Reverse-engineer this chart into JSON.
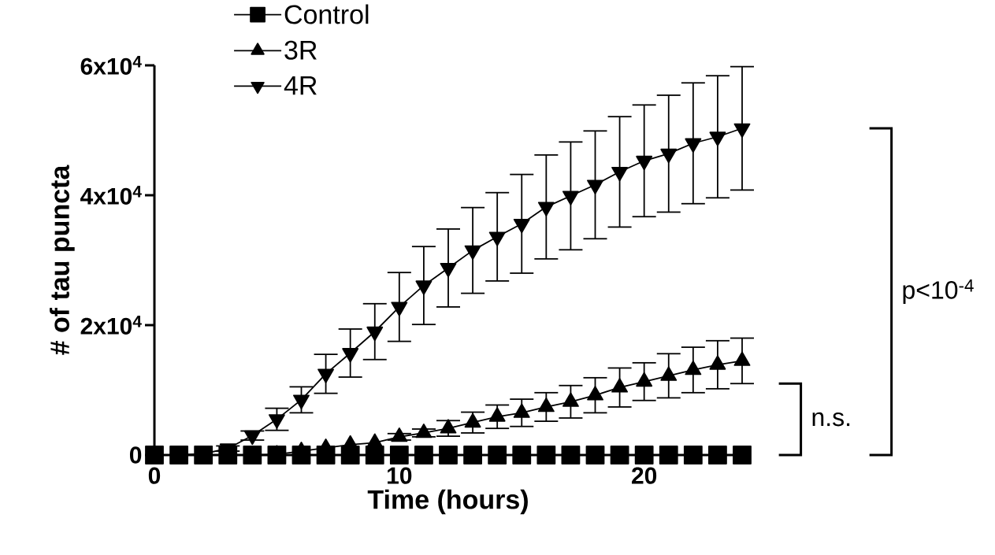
{
  "chart_data": {
    "type": "line",
    "xlabel": "Time (hours)",
    "ylabel": "# of tau puncta",
    "x": [
      0,
      1,
      2,
      3,
      4,
      5,
      6,
      7,
      8,
      9,
      10,
      11,
      12,
      13,
      14,
      15,
      16,
      17,
      18,
      19,
      20,
      21,
      22,
      23,
      24
    ],
    "xlim": [
      0,
      24
    ],
    "xticks": [
      0,
      10,
      20
    ],
    "ylim": [
      0,
      60000
    ],
    "yticks": [
      0,
      {
        "value": 20000,
        "label": "2x10$^{4}$"
      },
      {
        "value": 40000,
        "label": "4x10$^{4}$"
      },
      {
        "value": 60000,
        "label": "6x10$^{4}$"
      }
    ],
    "legend": "top left",
    "grid": false,
    "line_style": "solid",
    "series": [
      {
        "name": "Control",
        "color": "#000000",
        "marker": "square",
        "values": [
          0,
          0,
          0,
          0,
          0,
          0,
          0,
          0,
          0,
          0,
          0,
          0,
          0,
          0,
          0,
          0,
          0,
          0,
          0,
          0,
          0,
          0,
          0,
          0,
          0
        ]
      },
      {
        "name": "3R",
        "color": "#000000",
        "marker": "triangle",
        "values": [
          0,
          0,
          0,
          0,
          0,
          100,
          600,
          1100,
          1600,
          1900,
          2800,
          3400,
          4100,
          5000,
          5900,
          6500,
          7400,
          8200,
          9200,
          10400,
          11300,
          12200,
          13100,
          13900,
          14500
        ],
        "errors": [
          null,
          null,
          null,
          null,
          null,
          null,
          null,
          null,
          null,
          null,
          500,
          600,
          1200,
          1600,
          1800,
          2100,
          2200,
          2500,
          2700,
          3000,
          2900,
          3400,
          3500,
          3700,
          3500
        ]
      },
      {
        "name": "4R",
        "color": "#000000",
        "marker": "triangle-down",
        "values": [
          0,
          0,
          200,
          1000,
          3000,
          5500,
          8500,
          12500,
          15700,
          19000,
          22800,
          26100,
          28800,
          31500,
          33600,
          35600,
          38200,
          39900,
          41600,
          43600,
          45300,
          46400,
          48000,
          49000,
          50300
        ],
        "errors": [
          null,
          null,
          null,
          400,
          700,
          1700,
          2000,
          3000,
          3700,
          4300,
          5300,
          6000,
          6000,
          6600,
          6800,
          7600,
          8000,
          8300,
          8300,
          8500,
          8600,
          9000,
          9300,
          9400,
          9500
        ]
      }
    ],
    "annotations": [
      "n.s.",
      "p<10$^{-4}$"
    ]
  }
}
